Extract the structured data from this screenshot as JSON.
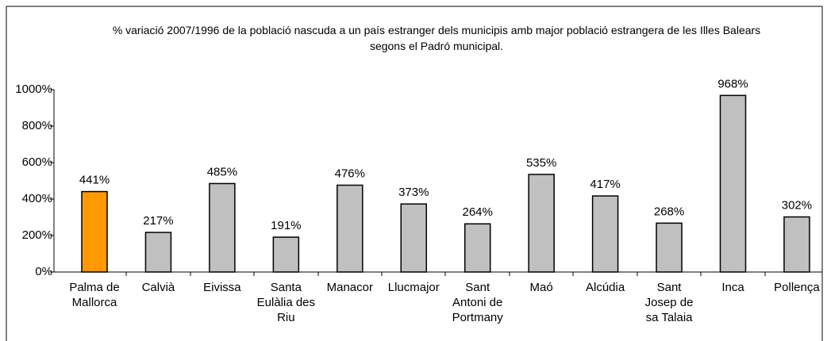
{
  "chart_data": {
    "type": "bar",
    "title": "% variació 2007/1996 de la població nascuda a un país estranger dels municipis amb major població estrangera de les Illes Balears segons el Padró municipal.",
    "categories": [
      "Palma de Mallorca",
      "Calvià",
      "Eivissa",
      "Santa Eulàlia des Riu",
      "Manacor",
      "Llucmajor",
      "Sant Antoni de Portmany",
      "Maó",
      "Alcúdia",
      "Sant Josep de sa Talaia",
      "Inca",
      "Pollença"
    ],
    "values": [
      441,
      217,
      485,
      191,
      476,
      373,
      264,
      535,
      417,
      268,
      968,
      302
    ],
    "value_labels": [
      "441%",
      "217%",
      "485%",
      "191%",
      "476%",
      "373%",
      "264%",
      "535%",
      "417%",
      "268%",
      "968%",
      "302%"
    ],
    "colors": [
      "#ff9900",
      "#c0c0c0",
      "#c0c0c0",
      "#c0c0c0",
      "#c0c0c0",
      "#c0c0c0",
      "#c0c0c0",
      "#c0c0c0",
      "#c0c0c0",
      "#c0c0c0",
      "#c0c0c0",
      "#c0c0c0"
    ],
    "ylim": [
      0,
      1000
    ],
    "yticks": [
      {
        "value": 0,
        "label": "0%"
      },
      {
        "value": 200,
        "label": "200%"
      },
      {
        "value": 400,
        "label": "400%"
      },
      {
        "value": 600,
        "label": "600%"
      },
      {
        "value": 800,
        "label": "800%"
      },
      {
        "value": 1000,
        "label": "1000%"
      }
    ],
    "grid": false
  }
}
